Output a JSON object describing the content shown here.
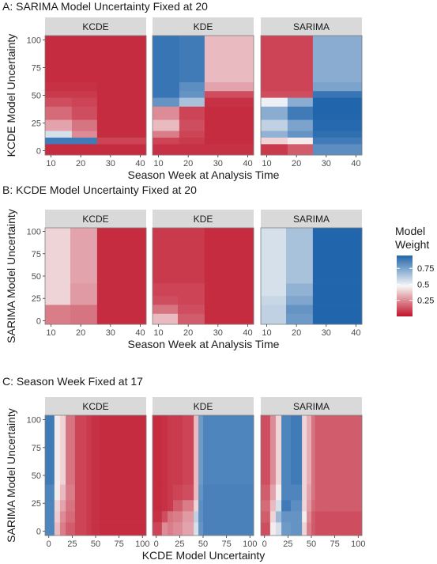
{
  "chart_data": [
    {
      "type": "heatmap",
      "title": "A: SARIMA Model Uncertainty Fixed at 20",
      "xlabel": "Season Week at Analysis Time",
      "ylabel": "KCDE Model Uncertainty",
      "xlim": [
        8,
        42
      ],
      "ylim": [
        -4,
        104
      ],
      "xticks": [
        10,
        20,
        30,
        40
      ],
      "yticks": [
        0,
        25,
        50,
        75,
        100
      ],
      "x_edges": [
        8,
        17,
        25.5,
        42
      ],
      "y_edges": [
        -4,
        6,
        12,
        18,
        28,
        40,
        48,
        54,
        62,
        104
      ],
      "panels": [
        {
          "strip": "KCDE",
          "cells": [
            [
              0.05,
              0.05,
              0.05
            ],
            [
              0.88,
              0.88,
              0.1
            ],
            [
              0.55,
              0.25,
              0.05
            ],
            [
              0.3,
              0.2,
              0.05
            ],
            [
              0.18,
              0.12,
              0.05
            ],
            [
              0.12,
              0.1,
              0.05
            ],
            [
              0.08,
              0.08,
              0.05
            ],
            [
              0.06,
              0.06,
              0.05
            ],
            [
              0.05,
              0.05,
              0.05
            ]
          ]
        },
        {
          "strip": "KDE",
          "cells": [
            [
              0.06,
              0.06,
              0.06
            ],
            [
              0.1,
              0.08,
              0.05
            ],
            [
              0.22,
              0.1,
              0.05
            ],
            [
              0.35,
              0.12,
              0.05
            ],
            [
              0.25,
              0.1,
              0.05
            ],
            [
              0.8,
              0.65,
              0.06
            ],
            [
              0.9,
              0.8,
              0.12
            ],
            [
              0.9,
              0.82,
              0.3
            ],
            [
              0.9,
              0.88,
              0.35
            ]
          ]
        },
        {
          "strip": "SARIMA",
          "cells": [
            [
              0.08,
              0.15,
              0.82
            ],
            [
              0.4,
              0.45,
              0.88
            ],
            [
              0.7,
              0.8,
              0.92
            ],
            [
              0.6,
              0.75,
              0.94
            ],
            [
              0.72,
              0.88,
              0.95
            ],
            [
              0.5,
              0.72,
              0.95
            ],
            [
              0.12,
              0.12,
              0.9
            ],
            [
              0.1,
              0.1,
              0.75
            ],
            [
              0.1,
              0.1,
              0.72
            ]
          ]
        }
      ]
    },
    {
      "type": "heatmap",
      "title": "B: KCDE Model Uncertainty Fixed at 20",
      "xlabel": "Season Week at Analysis Time",
      "ylabel": "SARIMA Model Uncertainty",
      "xlim": [
        8,
        42
      ],
      "ylim": [
        -4,
        104
      ],
      "xticks": [
        10,
        20,
        30,
        40
      ],
      "yticks": [
        0,
        25,
        50,
        75,
        100
      ],
      "x_edges": [
        8,
        16.5,
        25.5,
        42
      ],
      "y_edges": [
        -4,
        8,
        18,
        28,
        42,
        104
      ],
      "panels": [
        {
          "strip": "KCDE",
          "cells": [
            [
              0.22,
              0.2,
              0.05
            ],
            [
              0.22,
              0.2,
              0.05
            ],
            [
              0.4,
              0.28,
              0.05
            ],
            [
              0.4,
              0.28,
              0.05
            ],
            [
              0.4,
              0.3,
              0.05
            ]
          ]
        },
        {
          "strip": "KDE",
          "cells": [
            [
              0.35,
              0.15,
              0.05
            ],
            [
              0.2,
              0.12,
              0.05
            ],
            [
              0.12,
              0.1,
              0.05
            ],
            [
              0.1,
              0.1,
              0.05
            ],
            [
              0.08,
              0.08,
              0.05
            ]
          ]
        },
        {
          "strip": "SARIMA",
          "cells": [
            [
              0.6,
              0.78,
              0.95
            ],
            [
              0.6,
              0.8,
              0.95
            ],
            [
              0.58,
              0.74,
              0.95
            ],
            [
              0.55,
              0.7,
              0.95
            ],
            [
              0.55,
              0.65,
              0.95
            ]
          ]
        }
      ]
    },
    {
      "type": "heatmap",
      "title": "C: Season Week Fixed at 17",
      "xlabel": "KCDE Model Uncertainty",
      "ylabel": "SARIMA Model Uncertainty",
      "xlim": [
        -4,
        104
      ],
      "ylim": [
        -4,
        104
      ],
      "xticks": [
        0,
        25,
        50,
        75,
        100
      ],
      "yticks": [
        0,
        25,
        50,
        75,
        100
      ],
      "x_edges": [
        -4,
        6,
        12,
        18,
        28,
        40,
        45,
        50,
        54,
        62,
        104
      ],
      "y_edges": [
        -4,
        8,
        18,
        28,
        42,
        104
      ],
      "panels": [
        {
          "strip": "KCDE",
          "cells": [
            [
              0.85,
              0.35,
              0.22,
              0.15,
              0.1,
              0.08,
              0.06,
              0.06,
              0.05,
              0.05
            ],
            [
              0.85,
              0.38,
              0.25,
              0.18,
              0.1,
              0.08,
              0.06,
              0.06,
              0.05,
              0.05
            ],
            [
              0.85,
              0.4,
              0.3,
              0.2,
              0.1,
              0.08,
              0.06,
              0.06,
              0.05,
              0.05
            ],
            [
              0.85,
              0.45,
              0.35,
              0.22,
              0.1,
              0.08,
              0.06,
              0.06,
              0.05,
              0.05
            ],
            [
              0.88,
              0.45,
              0.4,
              0.2,
              0.1,
              0.08,
              0.06,
              0.06,
              0.05,
              0.05
            ]
          ]
        },
        {
          "strip": "KDE",
          "cells": [
            [
              0.1,
              0.25,
              0.22,
              0.25,
              0.3,
              0.55,
              0.8,
              0.86,
              0.86,
              0.86
            ],
            [
              0.06,
              0.12,
              0.2,
              0.22,
              0.28,
              0.6,
              0.82,
              0.86,
              0.86,
              0.86
            ],
            [
              0.05,
              0.06,
              0.08,
              0.15,
              0.22,
              0.4,
              0.82,
              0.86,
              0.86,
              0.86
            ],
            [
              0.05,
              0.06,
              0.08,
              0.1,
              0.12,
              0.35,
              0.8,
              0.86,
              0.86,
              0.86
            ],
            [
              0.05,
              0.06,
              0.08,
              0.08,
              0.1,
              0.35,
              0.78,
              0.85,
              0.85,
              0.85
            ]
          ]
        },
        {
          "strip": "SARIMA",
          "cells": [
            [
              0.12,
              0.45,
              0.55,
              0.78,
              0.8,
              0.4,
              0.22,
              0.15,
              0.12,
              0.12
            ],
            [
              0.15,
              0.4,
              0.68,
              0.8,
              0.8,
              0.45,
              0.25,
              0.15,
              0.12,
              0.12
            ],
            [
              0.18,
              0.35,
              0.55,
              0.88,
              0.82,
              0.4,
              0.28,
              0.18,
              0.15,
              0.15
            ],
            [
              0.15,
              0.3,
              0.45,
              0.85,
              0.85,
              0.4,
              0.3,
              0.2,
              0.15,
              0.15
            ],
            [
              0.12,
              0.25,
              0.4,
              0.85,
              0.88,
              0.4,
              0.32,
              0.2,
              0.15,
              0.15
            ]
          ]
        }
      ]
    }
  ],
  "legend": {
    "title_line1": "Model",
    "title_line2": "Weight",
    "ticks": [
      {
        "value": 0.25,
        "label": "0.25"
      },
      {
        "value": 0.5,
        "label": "0.5"
      },
      {
        "value": 0.75,
        "label": "0.75"
      }
    ],
    "range": [
      0.0,
      0.95
    ],
    "colors": {
      "low": "#c0142b",
      "mid": "#f7f7f7",
      "high": "#2166ac"
    }
  },
  "colors": {
    "strip_bg": "#d9d9d9",
    "panel_border": "#7f7f7f",
    "text": "#1a1a1a",
    "tick_text": "#4d4d4d"
  }
}
